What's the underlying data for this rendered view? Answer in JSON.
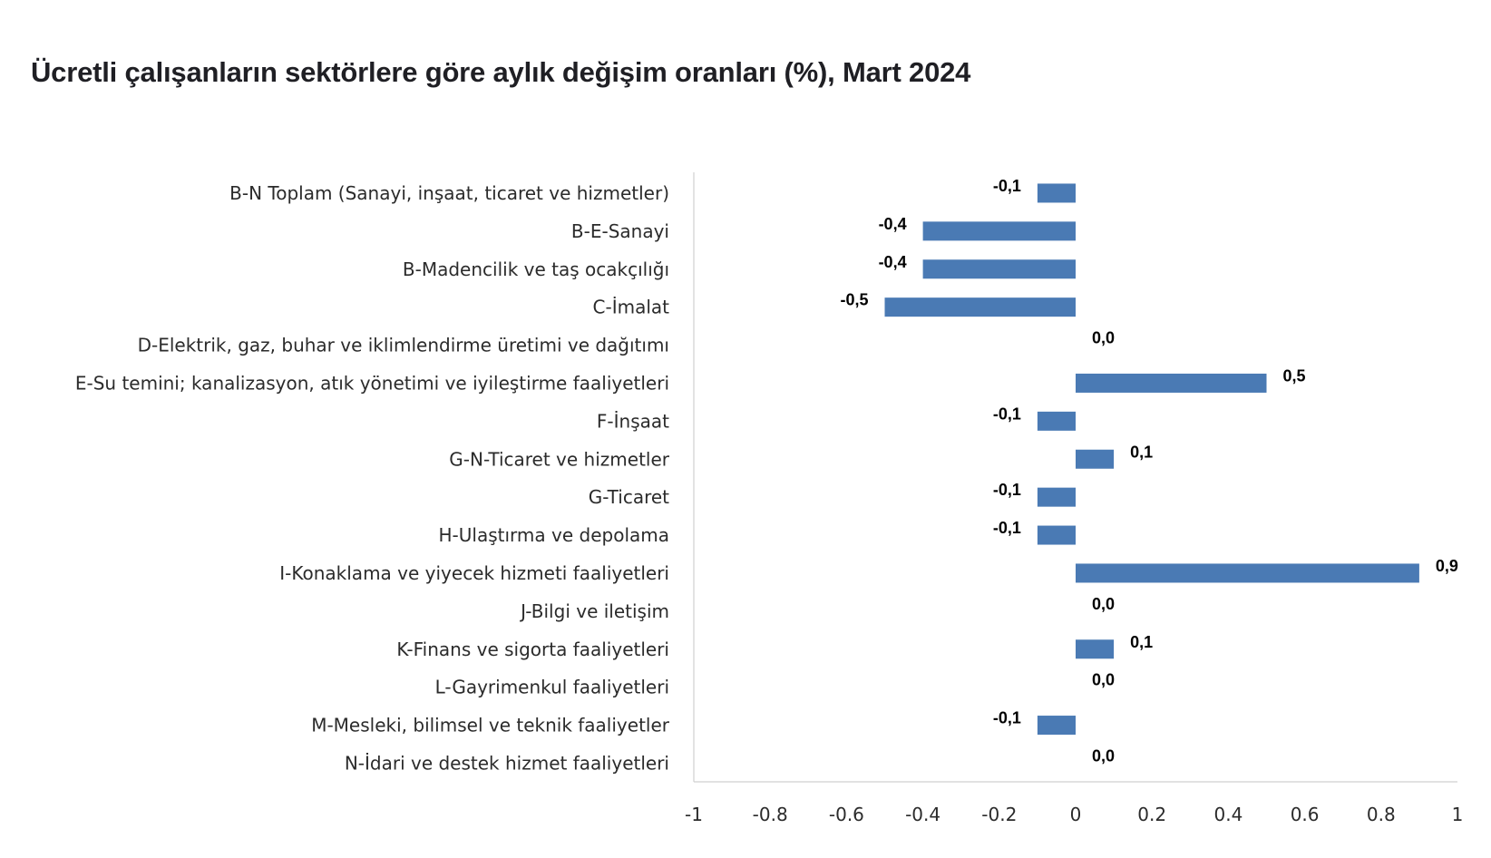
{
  "chart_data": {
    "type": "bar",
    "orientation": "horizontal",
    "title": "Ücretli çalışanların sektörlere göre aylık değişim oranları (%), Mart 2024",
    "xlim": [
      -1,
      1
    ],
    "x_ticks": [
      "-1",
      "-0.8",
      "-0.6",
      "-0.4",
      "-0.2",
      "0",
      "0.2",
      "0.4",
      "0.6",
      "0.8",
      "1"
    ],
    "x_tick_values": [
      -1,
      -0.8,
      -0.6,
      -0.4,
      -0.2,
      0,
      0.2,
      0.4,
      0.6,
      0.8,
      1
    ],
    "grid": false,
    "bar_color": "#4a7ab4",
    "categories": [
      "B-N Toplam (Sanayi, inşaat, ticaret ve hizmetler)",
      "B-E-Sanayi",
      "B-Madencilik ve taş ocakçılığı",
      "C-İmalat",
      "D-Elektrik, gaz, buhar ve iklimlendirme üretimi ve dağıtımı",
      "E-Su temini; kanalizasyon, atık yönetimi ve iyileştirme faaliyetleri",
      "F-İnşaat",
      "G-N-Ticaret ve hizmetler",
      "G-Ticaret",
      "H-Ulaştırma ve depolama",
      "I-Konaklama ve yiyecek hizmeti faaliyetleri",
      "J-Bilgi ve iletişim",
      "K-Finans ve sigorta faaliyetleri",
      "L-Gayrimenkul faaliyetleri",
      "M-Mesleki, bilimsel ve teknik faaliyetler",
      "N-İdari ve destek hizmet faaliyetleri"
    ],
    "values": [
      -0.1,
      -0.4,
      -0.4,
      -0.5,
      0.0,
      0.5,
      -0.1,
      0.1,
      -0.1,
      -0.1,
      0.9,
      0.0,
      0.1,
      0.0,
      -0.1,
      0.0
    ],
    "value_labels": [
      "-0,1",
      "-0,4",
      "-0,4",
      "-0,5",
      "0,0",
      "0,5",
      "-0,1",
      "0,1",
      "-0,1",
      "-0,1",
      "0,9",
      "0,0",
      "0,1",
      "0,0",
      "-0,1",
      "0,0"
    ]
  }
}
